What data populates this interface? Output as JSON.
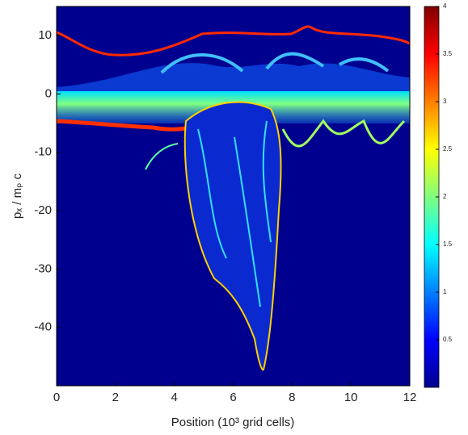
{
  "chart_data": {
    "type": "heatmap",
    "xlabel": "Position (10³ grid cells)",
    "ylabel": "pₓ / mₚ c",
    "xlim": [
      0,
      12
    ],
    "xticks": [
      0,
      2,
      4,
      6,
      8,
      10,
      12
    ],
    "ylim": [
      -50,
      15
    ],
    "yticks": [
      10,
      0,
      -10,
      -20,
      -30,
      -40
    ],
    "colormap": "jet",
    "clim": [
      0,
      4
    ],
    "cticks": [
      0.5,
      1,
      1.5,
      2,
      2.5,
      3,
      3.5,
      4
    ]
  }
}
